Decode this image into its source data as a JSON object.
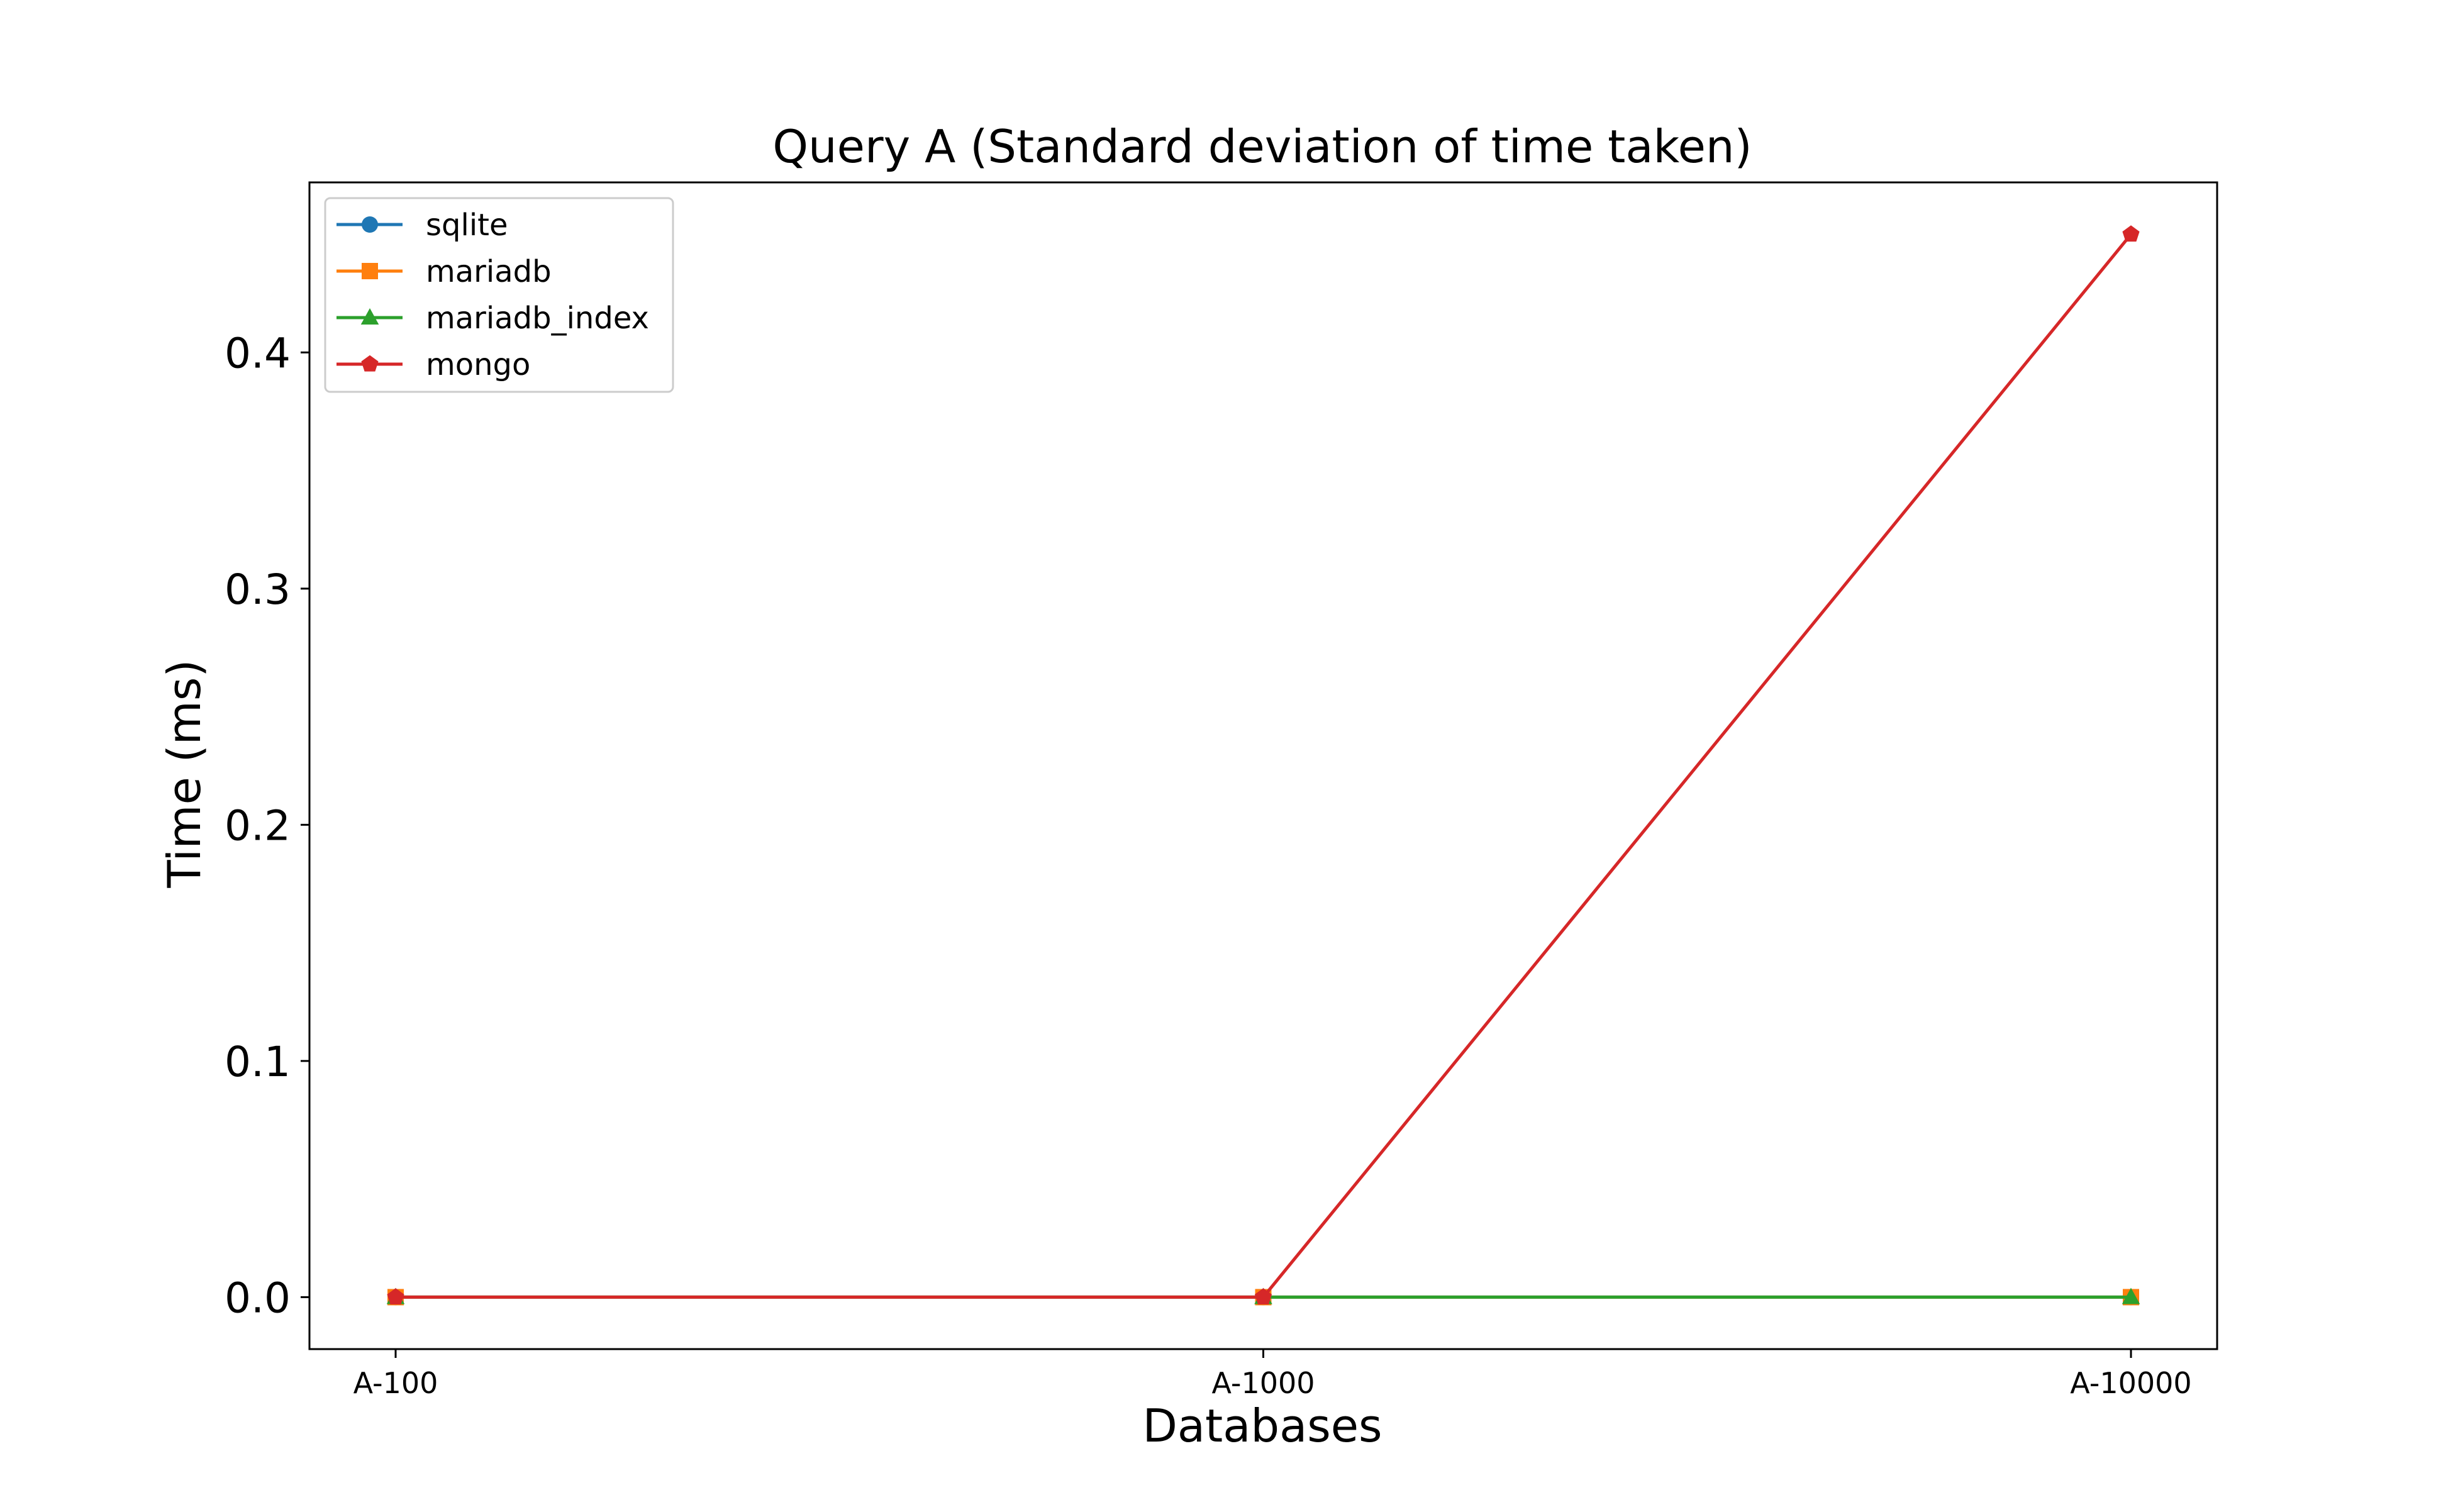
{
  "chart_data": {
    "type": "line",
    "title": "Query A (Standard deviation of time taken)",
    "xlabel": "Databases",
    "ylabel": "Time (ms)",
    "categories": [
      "A-100",
      "A-1000",
      "A-10000"
    ],
    "ylim": [
      -0.022,
      0.472
    ],
    "yticks": [
      0.0,
      0.1,
      0.2,
      0.3,
      0.4
    ],
    "ytick_labels": [
      "0.0",
      "0.1",
      "0.2",
      "0.3",
      "0.4"
    ],
    "grid": false,
    "legend_position": "upper-left",
    "series": [
      {
        "name": "sqlite",
        "values": [
          0.0,
          0.0,
          0.0
        ],
        "color": "#1f77b4",
        "marker": "circle"
      },
      {
        "name": "mariadb",
        "values": [
          0.0,
          0.0,
          0.0
        ],
        "color": "#ff7f0e",
        "marker": "square"
      },
      {
        "name": "mariadb_index",
        "values": [
          0.0,
          0.0,
          0.0
        ],
        "color": "#2ca02c",
        "marker": "triangle"
      },
      {
        "name": "mongo",
        "values": [
          0.0,
          0.0,
          0.45
        ],
        "color": "#d62728",
        "marker": "pentagon"
      }
    ]
  }
}
